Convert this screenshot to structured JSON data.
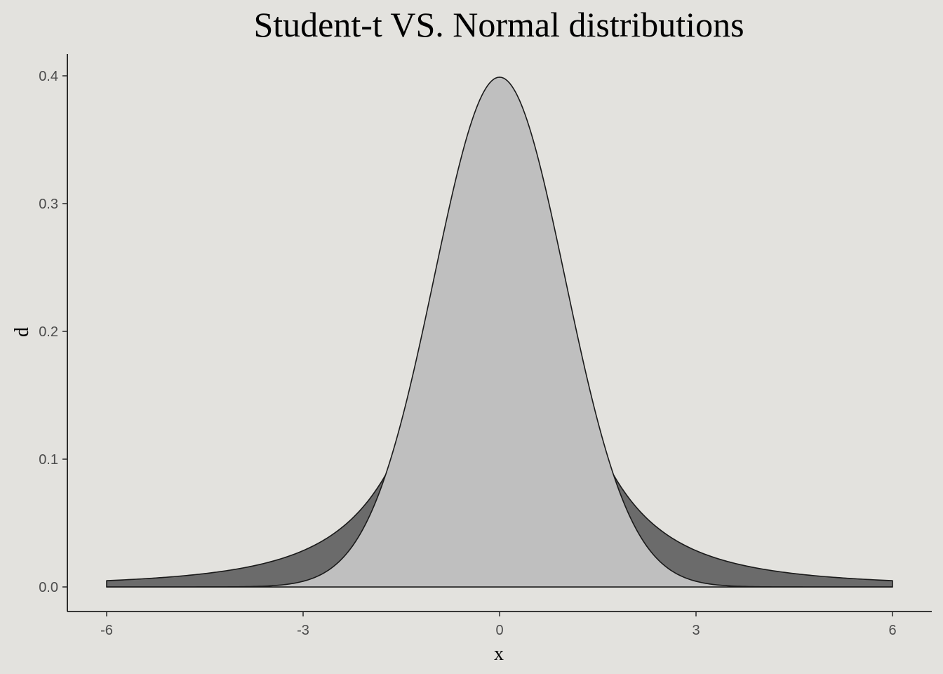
{
  "chart_data": {
    "type": "area",
    "title": "Student-t VS. Normal distributions",
    "xlabel": "x",
    "ylabel": "d",
    "xlim": [
      -6,
      6
    ],
    "ylim": [
      0,
      0.4
    ],
    "grid": false,
    "legend": "none",
    "x_ticks": [
      {
        "value": -6,
        "label": "-6"
      },
      {
        "value": -3,
        "label": "-3"
      },
      {
        "value": 0,
        "label": "0"
      },
      {
        "value": 3,
        "label": "3"
      },
      {
        "value": 6,
        "label": "6"
      }
    ],
    "y_ticks": [
      {
        "value": 0.0,
        "label": "0.0"
      },
      {
        "value": 0.1,
        "label": "0.1"
      },
      {
        "value": 0.2,
        "label": "0.2"
      },
      {
        "value": 0.3,
        "label": "0.3"
      },
      {
        "value": 0.4,
        "label": "0.4"
      }
    ],
    "series": [
      {
        "distribution": "student-t",
        "df": 1.8,
        "x": [
          -6,
          -5,
          -4,
          -3.5,
          -3,
          -2.5,
          -2,
          -1.75,
          -1.5,
          -1.25,
          -1,
          -0.75,
          -0.5,
          -0.25,
          0,
          0.25,
          0.5,
          0.75,
          1,
          1.25,
          1.5,
          1.75,
          2,
          2.5,
          3,
          3.5,
          4,
          5,
          6
        ],
        "y": [
          0.003,
          0.005,
          0.01,
          0.015,
          0.023,
          0.037,
          0.058,
          0.077,
          0.1,
          0.135,
          0.18,
          0.232,
          0.289,
          0.338,
          0.36,
          0.338,
          0.289,
          0.232,
          0.18,
          0.135,
          0.1,
          0.077,
          0.058,
          0.037,
          0.023,
          0.015,
          0.01,
          0.005,
          0.003
        ],
        "color": "#6b6b6b"
      },
      {
        "distribution": "normal",
        "mean": 0,
        "sd": 1,
        "x": [
          -6,
          -5,
          -4,
          -3.5,
          -3,
          -2.5,
          -2,
          -1.75,
          -1.5,
          -1.25,
          -1,
          -0.75,
          -0.5,
          -0.25,
          0,
          0.25,
          0.5,
          0.75,
          1,
          1.25,
          1.5,
          1.75,
          2,
          2.5,
          3,
          3.5,
          4,
          5,
          6
        ],
        "y": [
          0.0,
          0.0,
          0.0001,
          0.0009,
          0.0044,
          0.0175,
          0.054,
          0.0863,
          0.1295,
          0.1826,
          0.242,
          0.3011,
          0.3521,
          0.3867,
          0.3989,
          0.3867,
          0.3521,
          0.3011,
          0.242,
          0.1826,
          0.1295,
          0.0863,
          0.054,
          0.0175,
          0.0044,
          0.0009,
          0.0001,
          0.0,
          0.0
        ],
        "color": "#bfbfbf"
      }
    ]
  },
  "colors": {
    "background": "#e3e2de",
    "tail_fill": "#6b6b6b",
    "center_fill": "#bfbfbf",
    "outline": "#1a1a1a"
  }
}
